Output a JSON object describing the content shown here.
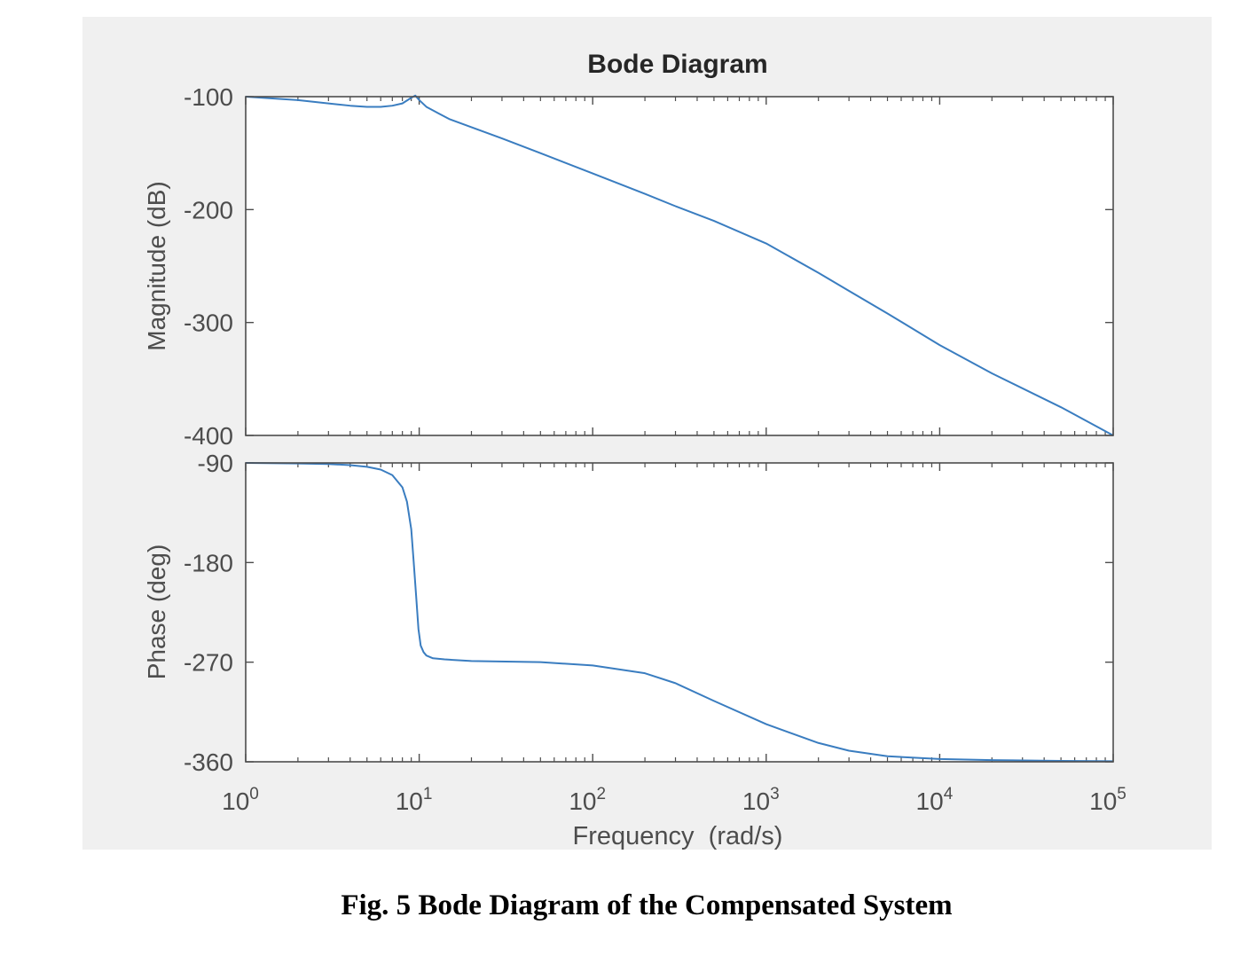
{
  "caption": "Fig. 5 Bode Diagram of the Compensated System",
  "colors": {
    "line": "#3a7dc0",
    "axes": "#4d4d4d",
    "panel_bg": "#f0f0f0",
    "plot_bg": "#ffffff"
  },
  "chart_data": {
    "type": "line",
    "title": "Bode Diagram",
    "xlabel": "Frequency  (rad/s)",
    "xscale": "log",
    "xlim": [
      1,
      100000
    ],
    "xticks": [
      {
        "base": "10",
        "exp": "0"
      },
      {
        "base": "10",
        "exp": "1"
      },
      {
        "base": "10",
        "exp": "2"
      },
      {
        "base": "10",
        "exp": "3"
      },
      {
        "base": "10",
        "exp": "4"
      },
      {
        "base": "10",
        "exp": "5"
      }
    ],
    "subplots": [
      {
        "name": "magnitude",
        "ylabel": "Magnitude (dB)",
        "ylim": [
          -400,
          -100
        ],
        "yticks": [
          "-100",
          "-200",
          "-300",
          "-400"
        ],
        "ytick_values": [
          -100,
          -200,
          -300,
          -400
        ],
        "series": [
          {
            "x": [
              1,
              2,
              3,
              4,
              5,
              6,
              7,
              8,
              9,
              9.5,
              10,
              11,
              13,
              15,
              20,
              30,
              50,
              100,
              200,
              300,
              500,
              1000,
              2000,
              3000,
              5000,
              10000,
              20000,
              50000,
              100000
            ],
            "y": [
              -100,
              -103,
              -106,
              -108,
              -109,
              -109,
              -108,
              -106,
              -101,
              -99,
              -103,
              -109,
              -115,
              -120,
              -127,
              -137,
              -150,
              -168,
              -186,
              -197,
              -210,
              -230,
              -256,
              -272,
              -292,
              -320,
              -345,
              -375,
              -400
            ]
          }
        ]
      },
      {
        "name": "phase",
        "ylabel": "Phase (deg)",
        "ylim": [
          -360,
          -90
        ],
        "yticks": [
          "-90",
          "-180",
          "-270",
          "-360"
        ],
        "ytick_values": [
          -90,
          -180,
          -270,
          -360
        ],
        "series": [
          {
            "x": [
              1,
              2,
              3,
              4,
              5,
              6,
              7,
              8,
              8.5,
              9,
              9.3,
              9.6,
              9.9,
              10.2,
              10.6,
              11,
              12,
              14,
              20,
              50,
              100,
              200,
              300,
              500,
              1000,
              2000,
              3000,
              5000,
              10000,
              20000,
              50000,
              100000
            ],
            "y": [
              -90,
              -90.5,
              -91,
              -92,
              -93.5,
              -96,
              -101,
              -112,
              -125,
              -150,
              -180,
              -210,
              -240,
              -255,
              -261,
              -264,
              -266.5,
              -267.5,
              -269,
              -270,
              -273,
              -280,
              -289,
              -305,
              -326,
              -343,
              -350,
              -355,
              -357.5,
              -358.5,
              -359.2,
              -359.5
            ]
          }
        ]
      }
    ]
  }
}
